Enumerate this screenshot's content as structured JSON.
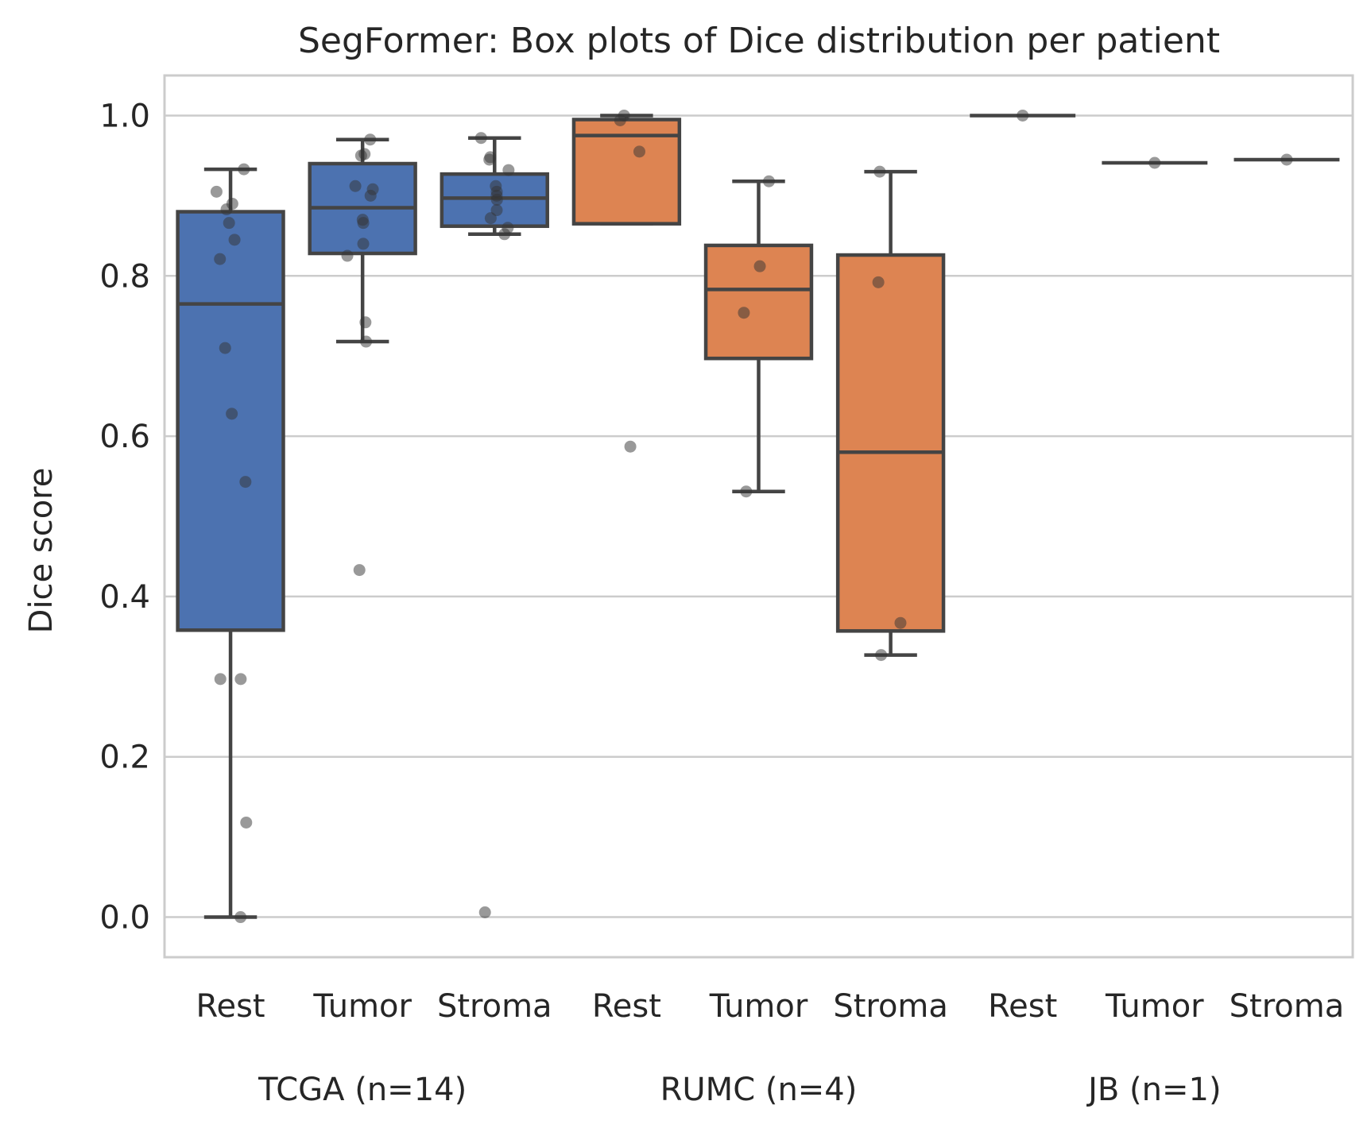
{
  "chart_data": {
    "type": "box",
    "title": "SegFormer: Box plots of Dice distribution per patient",
    "xlabel": "",
    "ylabel": "Dice score",
    "ylim": [
      -0.05,
      1.05
    ],
    "yticks": [
      0.0,
      0.2,
      0.4,
      0.6,
      0.8,
      1.0
    ],
    "ytick_labels": [
      "0.0",
      "0.2",
      "0.4",
      "0.6",
      "0.8",
      "1.0"
    ],
    "grid": true,
    "categories": [
      "Rest",
      "Tumor",
      "Stroma",
      "Rest",
      "Tumor",
      "Stroma",
      "Rest",
      "Tumor",
      "Stroma"
    ],
    "groups": [
      {
        "label": "TCGA (n=14)",
        "color": "#4c72b0",
        "span": [
          0,
          2
        ]
      },
      {
        "label": "RUMC (n=4)",
        "color": "#dd8452",
        "span": [
          3,
          5
        ]
      },
      {
        "label": "JB (n=1)",
        "color": "#dd8452",
        "span": [
          6,
          8
        ]
      }
    ],
    "boxes": [
      {
        "category": "Rest",
        "group": 0,
        "whisker_low": 0.0,
        "q1": 0.358,
        "median": 0.765,
        "q3": 0.88,
        "whisker_high": 0.933,
        "points": [
          0.933,
          0.905,
          0.89,
          0.883,
          0.866,
          0.845,
          0.821,
          0.71,
          0.628,
          0.543,
          0.297,
          0.297,
          0.118,
          0.0
        ]
      },
      {
        "category": "Tumor",
        "group": 0,
        "whisker_low": 0.718,
        "q1": 0.828,
        "median": 0.885,
        "q3": 0.94,
        "whisker_high": 0.97,
        "points": [
          0.97,
          0.952,
          0.95,
          0.912,
          0.908,
          0.9,
          0.87,
          0.866,
          0.84,
          0.825,
          0.742,
          0.718,
          0.433
        ]
      },
      {
        "category": "Stroma",
        "group": 0,
        "whisker_low": 0.852,
        "q1": 0.862,
        "median": 0.897,
        "q3": 0.927,
        "whisker_high": 0.972,
        "points": [
          0.972,
          0.948,
          0.945,
          0.932,
          0.912,
          0.905,
          0.9,
          0.895,
          0.882,
          0.872,
          0.86,
          0.852,
          0.006
        ]
      },
      {
        "category": "Rest",
        "group": 1,
        "whisker_low": 0.865,
        "q1": 0.865,
        "median": 0.975,
        "q3": 0.995,
        "whisker_high": 1.0,
        "points": [
          1.0,
          0.994,
          0.955,
          0.587
        ]
      },
      {
        "category": "Tumor",
        "group": 1,
        "whisker_low": 0.531,
        "q1": 0.697,
        "median": 0.783,
        "q3": 0.838,
        "whisker_high": 0.918,
        "points": [
          0.918,
          0.812,
          0.754,
          0.531
        ]
      },
      {
        "category": "Stroma",
        "group": 1,
        "whisker_low": 0.327,
        "q1": 0.357,
        "median": 0.58,
        "q3": 0.826,
        "whisker_high": 0.93,
        "points": [
          0.93,
          0.792,
          0.367,
          0.327
        ]
      },
      {
        "category": "Rest",
        "group": 2,
        "whisker_low": 1.0,
        "q1": 1.0,
        "median": 1.0,
        "q3": 1.0,
        "whisker_high": 1.0,
        "points": [
          1.0
        ]
      },
      {
        "category": "Tumor",
        "group": 2,
        "whisker_low": 0.941,
        "q1": 0.941,
        "median": 0.941,
        "q3": 0.941,
        "whisker_high": 0.941,
        "points": [
          0.941
        ]
      },
      {
        "category": "Stroma",
        "group": 2,
        "whisker_low": 0.945,
        "q1": 0.945,
        "median": 0.945,
        "q3": 0.945,
        "whisker_high": 0.945,
        "points": [
          0.945
        ]
      }
    ],
    "colors": {
      "line": "#444444",
      "grid": "#cccccc",
      "frame": "#cccccc",
      "point": "#333333"
    }
  }
}
